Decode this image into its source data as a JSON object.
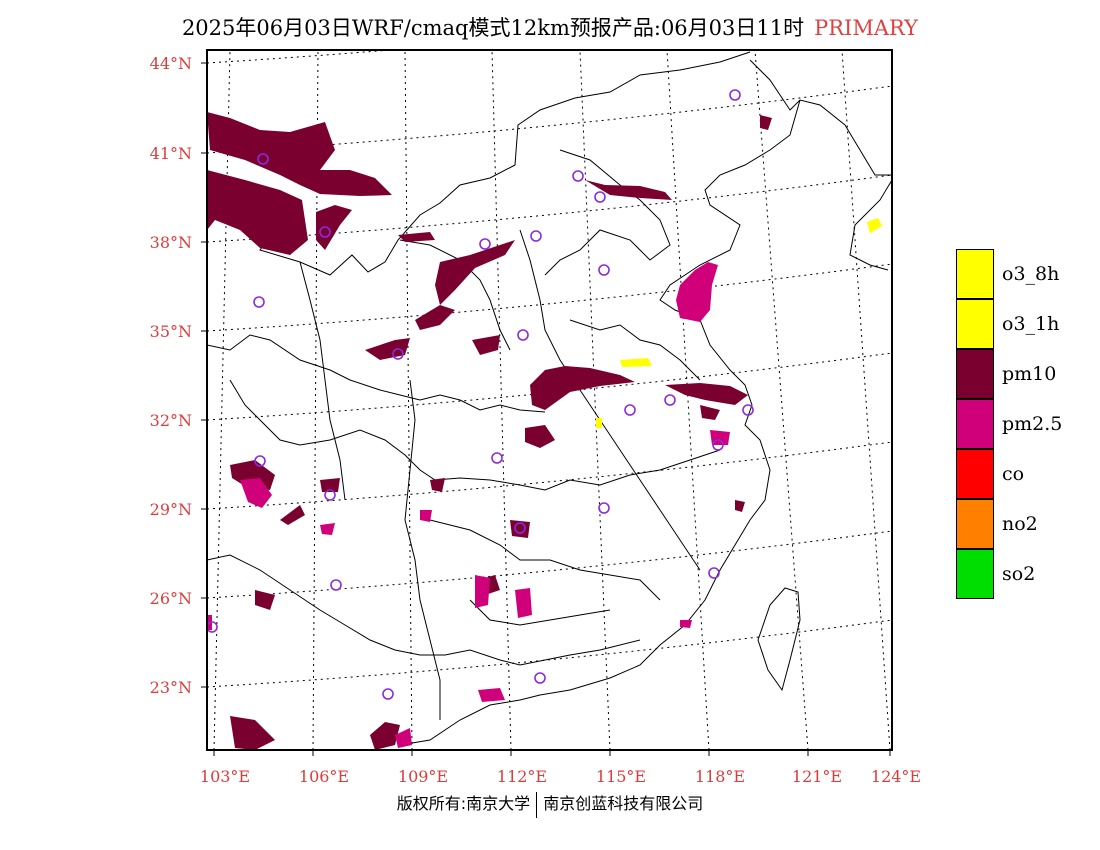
{
  "title": {
    "text": "2025年06月03日WRF/cmaq模式12km预报产品:06月03日11时",
    "mode": "PRIMARY"
  },
  "axes": {
    "lon_labels": [
      "103°E",
      "106°E",
      "109°E",
      "112°E",
      "115°E",
      "118°E",
      "121°E",
      "124°E"
    ],
    "lat_labels": [
      "44°N",
      "41°N",
      "38°N",
      "35°N",
      "32°N",
      "29°N",
      "26°N",
      "23°N"
    ]
  },
  "legend": [
    {
      "label": "o3_8h",
      "color": "#ffff00"
    },
    {
      "label": "o3_1h",
      "color": "#ffff00"
    },
    {
      "label": "pm10",
      "color": "#7a0030"
    },
    {
      "label": "pm2.5",
      "color": "#d0007a"
    },
    {
      "label": "co",
      "color": "#ff0000"
    },
    {
      "label": "no2",
      "color": "#ff7f00"
    },
    {
      "label": "so2",
      "color": "#00dd00"
    }
  ],
  "footer": {
    "left": "版权所有:南京大学",
    "right": "南京创蓝科技有限公司"
  },
  "colors": {
    "label": "#e03a3a",
    "pm10": "#7a0030",
    "pm25": "#d0007a",
    "o3": "#ffff00",
    "city_marker": "#8a2be2"
  }
}
